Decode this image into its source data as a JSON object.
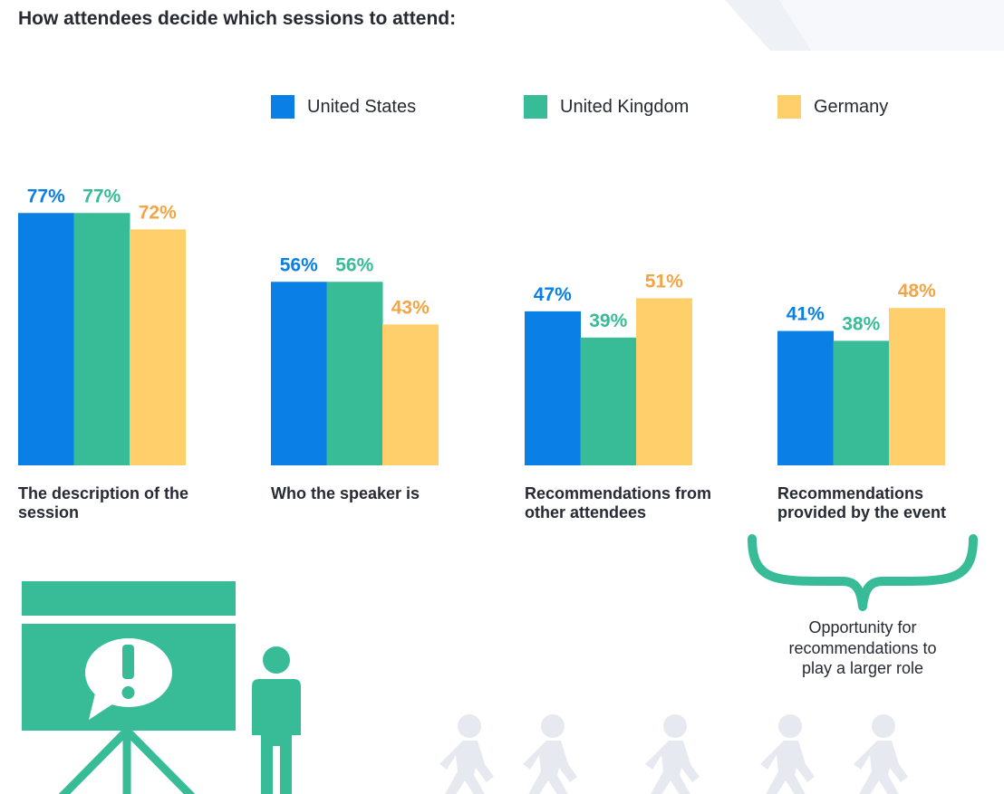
{
  "title": "How attendees decide which sessions to attend:",
  "colors": {
    "us": "#0a7fe6",
    "uk": "#38bc98",
    "de": "#fecf6a",
    "de_text": "#f3a545",
    "text": "#262a33",
    "walker": "#e7e9f0"
  },
  "legend": [
    {
      "label": "United States",
      "color": "#0a7fe6"
    },
    {
      "label": "United Kingdom",
      "color": "#38bc98"
    },
    {
      "label": "Germany",
      "color": "#fecf6a"
    }
  ],
  "chart_data": {
    "type": "bar",
    "title": "How attendees decide which sessions to attend:",
    "categories": [
      "The description of the session",
      "Who the speaker is",
      "Recommendations from other attendees",
      "Recommendations provided by the event"
    ],
    "series": [
      {
        "name": "United States",
        "values": [
          77,
          56,
          47,
          41
        ],
        "labels": [
          "77%",
          "56%",
          "47%",
          "41%"
        ]
      },
      {
        "name": "United Kingdom",
        "values": [
          77,
          56,
          39,
          38
        ],
        "labels": [
          "77%",
          "56%",
          "39%",
          "38%"
        ]
      },
      {
        "name": "Germany",
        "values": [
          72,
          43,
          51,
          48
        ],
        "labels": [
          "72%",
          "43%",
          "51%",
          "48%"
        ]
      }
    ],
    "ylim": [
      0,
      100
    ],
    "grid": false,
    "legend_position": "top"
  },
  "annotation": "Opportunity for recommendations to play a larger role",
  "icons": {
    "presentation": "presentation-board-icon",
    "presenter": "presenter-person-icon",
    "brace": "curly-brace-icon",
    "walkers": "walking-person-icon"
  }
}
